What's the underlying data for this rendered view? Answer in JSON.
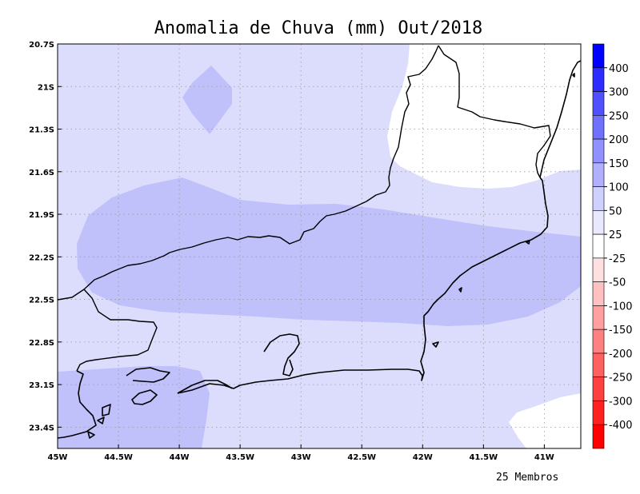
{
  "title": "Anomalia de Chuva (mm) Out/2018",
  "footnote": "25 Membros",
  "map": {
    "lon_range": [
      -45,
      -40.7
    ],
    "lat_range": [
      -23.55,
      -20.7
    ],
    "x_ticks": [
      {
        "value": -45,
        "label": "45W"
      },
      {
        "value": -44.5,
        "label": "44.5W"
      },
      {
        "value": -44,
        "label": "44W"
      },
      {
        "value": -43.5,
        "label": "43.5W"
      },
      {
        "value": -43,
        "label": "43W"
      },
      {
        "value": -42.5,
        "label": "42.5W"
      },
      {
        "value": -42,
        "label": "42W"
      },
      {
        "value": -41.5,
        "label": "41.5W"
      },
      {
        "value": -41,
        "label": "41W"
      }
    ],
    "y_ticks": [
      {
        "value": -20.7,
        "label": "20.7S"
      },
      {
        "value": -21,
        "label": "21S"
      },
      {
        "value": -21.3,
        "label": "21.3S"
      },
      {
        "value": -21.6,
        "label": "21.6S"
      },
      {
        "value": -21.9,
        "label": "21.9S"
      },
      {
        "value": -22.2,
        "label": "22.2S"
      },
      {
        "value": -22.5,
        "label": "22.5S"
      },
      {
        "value": -22.8,
        "label": "22.8S"
      },
      {
        "value": -23.1,
        "label": "23.1S"
      },
      {
        "value": -23.4,
        "label": "23.4S"
      }
    ],
    "grid": true,
    "base_fill": "#dcdcfc",
    "shading": [
      {
        "category": "0-25",
        "color": "#ffffff"
      },
      {
        "category": "25-50",
        "color": "#dcdcfc"
      },
      {
        "category": "50-100",
        "color": "#c0c0fa"
      }
    ]
  },
  "colorbar": {
    "labels": [
      "400",
      "300",
      "250",
      "200",
      "150",
      "100",
      "50",
      "25",
      "-25",
      "-50",
      "-100",
      "-150",
      "-200",
      "-250",
      "-300",
      "-400"
    ],
    "colors": [
      "#0000ff",
      "#2c2cff",
      "#5050ff",
      "#7070ff",
      "#9090ff",
      "#b0b0ff",
      "#d0d0ff",
      "#e8e8ff",
      "#ffffff",
      "#ffe0e0",
      "#ffc0c0",
      "#ffa0a0",
      "#ff8080",
      "#ff6060",
      "#ff4040",
      "#ff2020",
      "#ff0000"
    ]
  }
}
